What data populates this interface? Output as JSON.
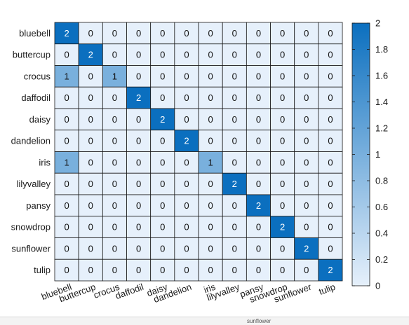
{
  "chart_data": {
    "type": "heatmap",
    "title": "",
    "xlabel": "",
    "ylabel": "",
    "rows": [
      "bluebell",
      "buttercup",
      "crocus",
      "daffodil",
      "daisy",
      "dandelion",
      "iris",
      "lilyvalley",
      "pansy",
      "snowdrop",
      "sunflower",
      "tulip"
    ],
    "columns": [
      "bluebell",
      "buttercup",
      "crocus",
      "daffodil",
      "daisy",
      "dandelion",
      "iris",
      "lilyvalley",
      "pansy",
      "snowdrop",
      "sunflower",
      "tulip"
    ],
    "values": [
      [
        2,
        0,
        0,
        0,
        0,
        0,
        0,
        0,
        0,
        0,
        0,
        0
      ],
      [
        0,
        2,
        0,
        0,
        0,
        0,
        0,
        0,
        0,
        0,
        0,
        0
      ],
      [
        1,
        0,
        1,
        0,
        0,
        0,
        0,
        0,
        0,
        0,
        0,
        0
      ],
      [
        0,
        0,
        0,
        2,
        0,
        0,
        0,
        0,
        0,
        0,
        0,
        0
      ],
      [
        0,
        0,
        0,
        0,
        2,
        0,
        0,
        0,
        0,
        0,
        0,
        0
      ],
      [
        0,
        0,
        0,
        0,
        0,
        2,
        0,
        0,
        0,
        0,
        0,
        0
      ],
      [
        1,
        0,
        0,
        0,
        0,
        0,
        1,
        0,
        0,
        0,
        0,
        0
      ],
      [
        0,
        0,
        0,
        0,
        0,
        0,
        0,
        2,
        0,
        0,
        0,
        0
      ],
      [
        0,
        0,
        0,
        0,
        0,
        0,
        0,
        0,
        2,
        0,
        0,
        0
      ],
      [
        0,
        0,
        0,
        0,
        0,
        0,
        0,
        0,
        0,
        2,
        0,
        0
      ],
      [
        0,
        0,
        0,
        0,
        0,
        0,
        0,
        0,
        0,
        0,
        2,
        0
      ],
      [
        0,
        0,
        0,
        0,
        0,
        0,
        0,
        0,
        0,
        0,
        0,
        2
      ]
    ],
    "colorbar": {
      "range": [
        0,
        2
      ],
      "ticks": [
        "0",
        "0.2",
        "0.4",
        "0.6",
        "0.8",
        "1",
        "1.2",
        "1.4",
        "1.6",
        "1.8",
        "2"
      ],
      "colors": {
        "low": "#e6f0fb",
        "high": "#0b6fbf"
      }
    },
    "grid": true,
    "legend": "colorbar-right"
  },
  "footer_fragment": "sunflower"
}
